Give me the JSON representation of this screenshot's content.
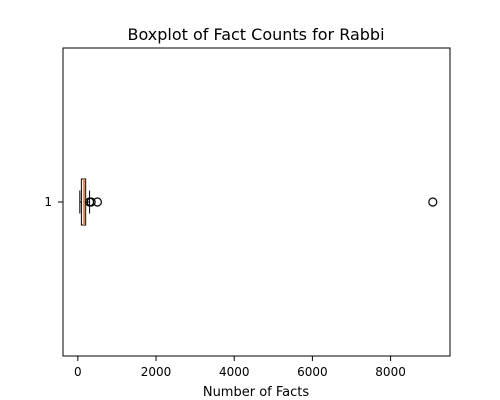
{
  "chart_data": {
    "type": "boxplot",
    "title": "Boxplot of Fact Counts for Rabbi",
    "xlabel": "Number of Facts",
    "ylabel": "",
    "orientation": "horizontal",
    "xlim": [
      -380,
      9520
    ],
    "x_ticks": [
      0,
      2000,
      4000,
      6000,
      8000
    ],
    "x_tick_labels": [
      "0",
      "2000",
      "4000",
      "6000",
      "8000"
    ],
    "y_tick_labels": [
      "1"
    ],
    "grid": false,
    "series": [
      {
        "category": "1",
        "whisker_low": 50,
        "q1": 90,
        "median": 160,
        "q3": 200,
        "whisker_high": 300,
        "outliers": [
          300,
          340,
          500,
          9080
        ]
      }
    ],
    "colors": {
      "median_line": "#e8814b",
      "box_edge": "#000000"
    }
  }
}
